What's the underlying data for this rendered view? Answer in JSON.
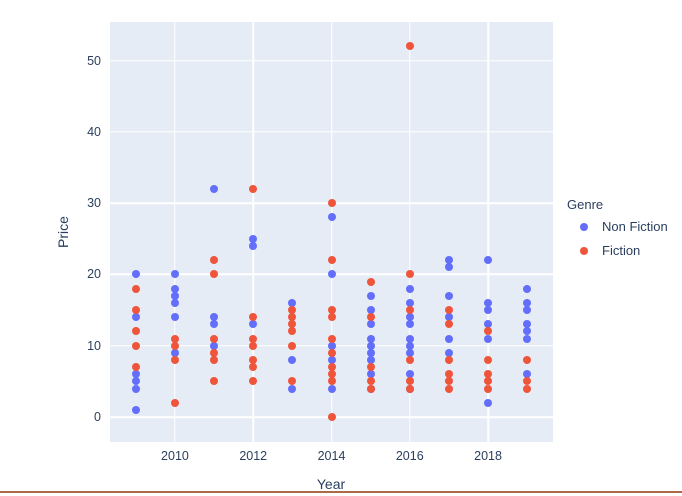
{
  "colors": {
    "plot_background": "#e5ecf6",
    "gridline": "#ffffff",
    "text": "#2a3f5f",
    "bottom_rule": "#aa6b46"
  },
  "chart_data": {
    "type": "scatter",
    "title": "",
    "xlabel": "Year",
    "ylabel": "Price",
    "legend_title": "Genre",
    "legend_position": "right",
    "grid": true,
    "x_ticks": [
      2010,
      2012,
      2014,
      2016,
      2018
    ],
    "y_ticks": [
      0,
      10,
      20,
      30,
      40,
      50
    ],
    "xlim": [
      2008.34,
      2019.66
    ],
    "ylim": [
      -3.5,
      55.4
    ],
    "series": [
      {
        "name": "Non Fiction",
        "color": "#636efa",
        "points": [
          [
            2009,
            20
          ],
          [
            2009,
            14
          ],
          [
            2009,
            6
          ],
          [
            2009,
            5
          ],
          [
            2009,
            4
          ],
          [
            2009,
            1
          ],
          [
            2010,
            20
          ],
          [
            2010,
            18
          ],
          [
            2010,
            17
          ],
          [
            2010,
            16
          ],
          [
            2010,
            14
          ],
          [
            2010,
            9
          ],
          [
            2011,
            32
          ],
          [
            2011,
            14
          ],
          [
            2011,
            13
          ],
          [
            2011,
            10
          ],
          [
            2012,
            25
          ],
          [
            2012,
            24
          ],
          [
            2012,
            13
          ],
          [
            2013,
            16
          ],
          [
            2013,
            8
          ],
          [
            2013,
            4
          ],
          [
            2014,
            28
          ],
          [
            2014,
            20
          ],
          [
            2014,
            10
          ],
          [
            2014,
            8
          ],
          [
            2014,
            4
          ],
          [
            2015,
            17
          ],
          [
            2015,
            15
          ],
          [
            2015,
            13
          ],
          [
            2015,
            11
          ],
          [
            2015,
            10
          ],
          [
            2015,
            9
          ],
          [
            2015,
            8
          ],
          [
            2015,
            6
          ],
          [
            2015,
            4
          ],
          [
            2016,
            18
          ],
          [
            2016,
            16
          ],
          [
            2016,
            14
          ],
          [
            2016,
            13
          ],
          [
            2016,
            11
          ],
          [
            2016,
            10
          ],
          [
            2016,
            9
          ],
          [
            2016,
            6
          ],
          [
            2016,
            4
          ],
          [
            2017,
            22
          ],
          [
            2017,
            21
          ],
          [
            2017,
            17
          ],
          [
            2017,
            14
          ],
          [
            2017,
            11
          ],
          [
            2017,
            9
          ],
          [
            2018,
            22
          ],
          [
            2018,
            16
          ],
          [
            2018,
            15
          ],
          [
            2018,
            13
          ],
          [
            2018,
            11
          ],
          [
            2018,
            2
          ],
          [
            2019,
            18
          ],
          [
            2019,
            16
          ],
          [
            2019,
            15
          ],
          [
            2019,
            13
          ],
          [
            2019,
            12
          ],
          [
            2019,
            11
          ],
          [
            2019,
            6
          ]
        ]
      },
      {
        "name": "Fiction",
        "color": "#ef553b",
        "points": [
          [
            2009,
            18
          ],
          [
            2009,
            15
          ],
          [
            2009,
            12
          ],
          [
            2009,
            10
          ],
          [
            2009,
            7
          ],
          [
            2010,
            11
          ],
          [
            2010,
            10
          ],
          [
            2010,
            8
          ],
          [
            2010,
            2
          ],
          [
            2011,
            22
          ],
          [
            2011,
            20
          ],
          [
            2011,
            11
          ],
          [
            2011,
            9
          ],
          [
            2011,
            8
          ],
          [
            2011,
            5
          ],
          [
            2012,
            32
          ],
          [
            2012,
            14
          ],
          [
            2012,
            11
          ],
          [
            2012,
            10
          ],
          [
            2012,
            8
          ],
          [
            2012,
            7
          ],
          [
            2012,
            5
          ],
          [
            2013,
            15
          ],
          [
            2013,
            14
          ],
          [
            2013,
            13
          ],
          [
            2013,
            12
          ],
          [
            2013,
            10
          ],
          [
            2013,
            5
          ],
          [
            2014,
            30
          ],
          [
            2014,
            22
          ],
          [
            2014,
            15
          ],
          [
            2014,
            14
          ],
          [
            2014,
            11
          ],
          [
            2014,
            9
          ],
          [
            2014,
            7
          ],
          [
            2014,
            6
          ],
          [
            2014,
            5
          ],
          [
            2014,
            0
          ],
          [
            2015,
            19
          ],
          [
            2015,
            14
          ],
          [
            2015,
            7
          ],
          [
            2015,
            5
          ],
          [
            2015,
            4
          ],
          [
            2016,
            52
          ],
          [
            2016,
            20
          ],
          [
            2016,
            15
          ],
          [
            2016,
            8
          ],
          [
            2016,
            5
          ],
          [
            2016,
            4
          ],
          [
            2017,
            15
          ],
          [
            2017,
            13
          ],
          [
            2017,
            8
          ],
          [
            2017,
            6
          ],
          [
            2017,
            5
          ],
          [
            2017,
            4
          ],
          [
            2018,
            12
          ],
          [
            2018,
            8
          ],
          [
            2018,
            6
          ],
          [
            2018,
            5
          ],
          [
            2018,
            4
          ],
          [
            2019,
            8
          ],
          [
            2019,
            5
          ],
          [
            2019,
            4
          ]
        ]
      }
    ]
  }
}
